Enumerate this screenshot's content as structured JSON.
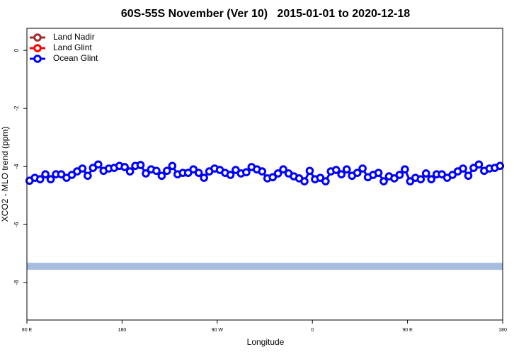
{
  "chart_data": {
    "type": "line",
    "title": "60S-55S November (Ver 10)   2015-01-01 to 2020-12-18",
    "x_label": "Longitude",
    "y_label": "XCO2 - MLO trend (ppm)",
    "xlim": [
      90,
      540
    ],
    "xticks": [
      {
        "value": 90,
        "label": "90 E"
      },
      180,
      {
        "value": 270,
        "label": "90 W"
      },
      {
        "value": 360,
        "label": "0"
      },
      {
        "value": 450,
        "label": "90 E"
      },
      {
        "value": 540,
        "label": "180"
      }
    ],
    "ylim": [
      -9.29,
      0.76
    ],
    "yticks": [
      0,
      -2,
      -4,
      -6,
      -8
    ],
    "legend_position": "top-left",
    "legend": [
      {
        "name": "Land Nadir",
        "color": "#a52a2a"
      },
      {
        "name": "Land Glint",
        "color": "#ff0000"
      },
      {
        "name": "Ocean Glint",
        "color": "#0000ff"
      }
    ],
    "hline": -7.44,
    "hline_color": "#a6bde0",
    "x": [
      92.5,
      97.5,
      102.5,
      107.5,
      112.5,
      117.5,
      122.5,
      127.5,
      132.5,
      137.5,
      142.5,
      147.5,
      152.5,
      157.5,
      162.5,
      167.5,
      172.5,
      177.5,
      182.5,
      187.5,
      192.5,
      197.5,
      202.5,
      207.5,
      212.5,
      217.5,
      222.5,
      227.5,
      232.5,
      237.5,
      242.5,
      247.5,
      252.5,
      257.5,
      262.5,
      267.5,
      272.5,
      277.5,
      282.5,
      287.5,
      292.5,
      297.5,
      302.5,
      307.5,
      312.5,
      317.5,
      322.5,
      327.5,
      332.5,
      337.5,
      342.5,
      347.5,
      352.5,
      357.5,
      362.5,
      367.5,
      372.5,
      377.5,
      382.5,
      387.5,
      392.5,
      397.5,
      402.5,
      407.5,
      412.5,
      417.5,
      422.5,
      427.5,
      432.5,
      437.5,
      442.5,
      447.5,
      452.5,
      457.5,
      462.5,
      467.5,
      472.5,
      477.5,
      482.5,
      487.5,
      492.5,
      497.5,
      502.5,
      507.5,
      512.5,
      517.5,
      522.5,
      527.5,
      532.5,
      537.5
    ],
    "series": [
      {
        "name": "Ocean Glint",
        "color": "#0000ff",
        "values": [
          -4.49,
          -4.39,
          -4.44,
          -4.27,
          -4.44,
          -4.27,
          -4.27,
          -4.39,
          -4.29,
          -4.17,
          -4.07,
          -4.32,
          -4.05,
          -3.93,
          -4.15,
          -4.07,
          -4.05,
          -3.98,
          -4.02,
          -4.17,
          -3.98,
          -3.95,
          -4.24,
          -4.1,
          -4.15,
          -4.32,
          -4.15,
          -3.98,
          -4.27,
          -4.22,
          -4.22,
          -4.1,
          -4.22,
          -4.39,
          -4.17,
          -4.07,
          -4.12,
          -4.22,
          -4.29,
          -4.12,
          -4.24,
          -4.2,
          -4.02,
          -4.1,
          -4.17,
          -4.41,
          -4.37,
          -4.24,
          -4.1,
          -4.24,
          -4.34,
          -4.41,
          -4.51,
          -4.15,
          -4.44,
          -4.39,
          -4.51,
          -4.17,
          -4.12,
          -4.27,
          -4.1,
          -4.32,
          -4.22,
          -4.07,
          -4.37,
          -4.29,
          -4.22,
          -4.51,
          -4.34,
          -4.41,
          -4.29,
          -4.1,
          -4.51,
          -4.39,
          -4.44,
          -4.24,
          -4.44,
          -4.27,
          -4.27,
          -4.39,
          -4.29,
          -4.17,
          -4.07,
          -4.32,
          -4.05,
          -3.93,
          -4.15,
          -4.07,
          -4.05,
          -3.98
        ]
      }
    ]
  }
}
